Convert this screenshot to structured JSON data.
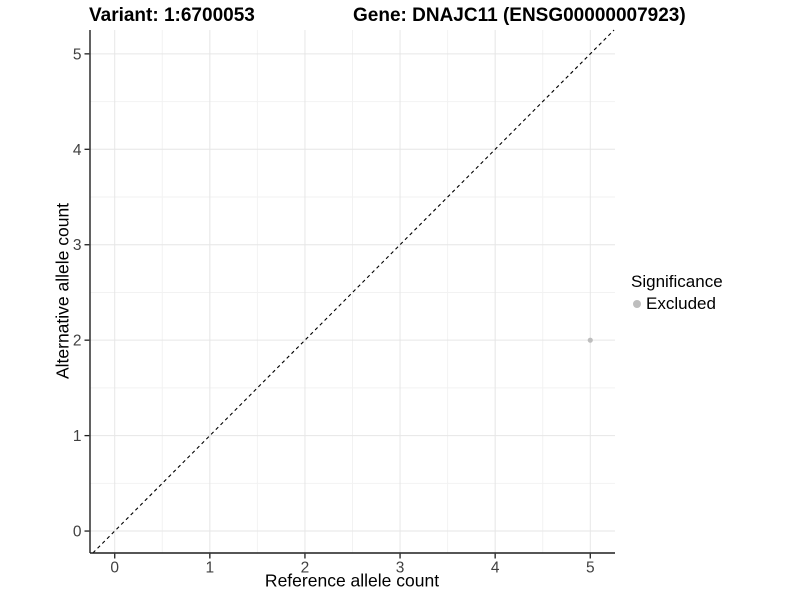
{
  "header": {
    "variant_title": "Variant: 1:6700053",
    "gene_title": "Gene: DNAJC11 (ENSG00000007923)"
  },
  "chart_data": {
    "type": "scatter",
    "title": "Variant: 1:6700053  /  Gene: DNAJC11 (ENSG00000007923)",
    "xlabel": "Reference allele count",
    "ylabel": "Alternative allele count",
    "xlim": [
      -0.26,
      5.26
    ],
    "ylim": [
      -0.23,
      5.25
    ],
    "xticks": [
      0,
      1,
      2,
      3,
      4,
      5
    ],
    "yticks": [
      0,
      1,
      2,
      3,
      4,
      5
    ],
    "grid": {
      "show": true,
      "minor_step": 0.5,
      "major_color": "#e6e6e6",
      "minor_color": "#f2f2f2"
    },
    "reference_line": {
      "name": "identity-line",
      "slope": 1,
      "intercept": 0,
      "style": "dashed",
      "color": "#000000"
    },
    "series": [
      {
        "name": "Excluded",
        "color": "#bebebe",
        "points": [
          {
            "x": 5,
            "y": 2
          }
        ]
      }
    ],
    "legend": {
      "title": "Significance",
      "position": "right",
      "entries": [
        {
          "label": "Excluded",
          "color": "#bebebe"
        }
      ]
    }
  },
  "style_colors": {
    "axis_line": "#1f1f1f",
    "tick_mark": "#1f1f1f",
    "tick_label": "#404040",
    "background": "#ffffff"
  }
}
